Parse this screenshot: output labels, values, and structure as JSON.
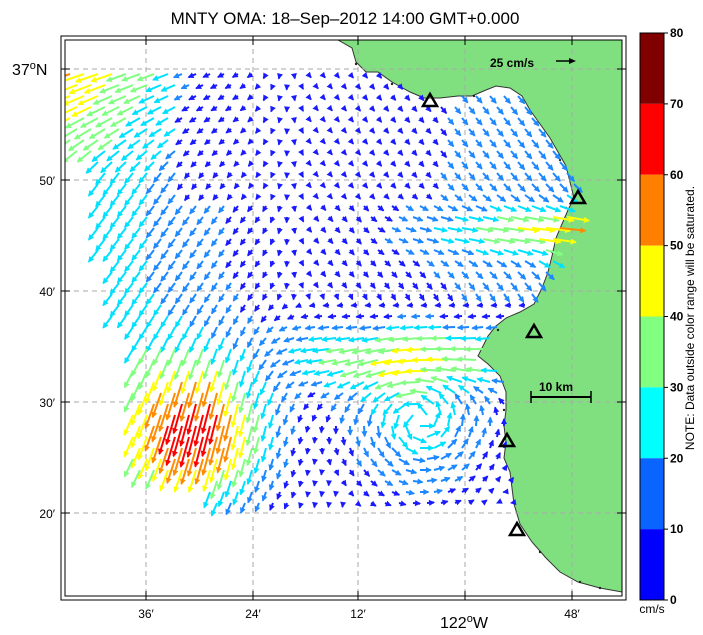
{
  "title": "MNTY OMA: 18–Sep–2012 14:00 GMT+0.000",
  "axes": {
    "lat_main": "37",
    "lat_main_deg": "o",
    "lat_main_hem": "N",
    "lat_ticks": [
      "50′",
      "40′",
      "30′",
      "20′"
    ],
    "lon_ticks": [
      "36′",
      "24′",
      "12′",
      "48′"
    ],
    "lon_main": "122",
    "lon_main_deg": "o",
    "lon_main_hem": "W"
  },
  "legend": {
    "scale_vector_label": "25 cm/s",
    "scale_bar_label": "10 km"
  },
  "colorbar": {
    "ticks": [
      "0",
      "10",
      "20",
      "30",
      "40",
      "50",
      "60",
      "70",
      "80"
    ],
    "unit": "cm/s",
    "note": "NOTE: Data outside color range will be saturated.",
    "colors": [
      "#0000ff",
      "#0a64ff",
      "#00c8ff",
      "#00ffff",
      "#80ff80",
      "#ffff00",
      "#ff8000",
      "#ff0000",
      "#800000"
    ]
  },
  "map_colors": {
    "land": "#80e080",
    "ocean": "#ffffff",
    "coast": "#333333"
  }
}
